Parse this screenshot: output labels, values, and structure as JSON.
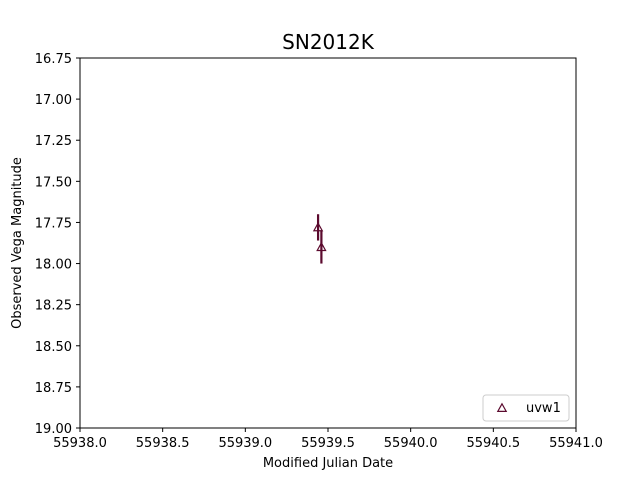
{
  "chart_data": {
    "type": "scatter",
    "title": "SN2012K",
    "xlabel": "Modified Julian Date",
    "ylabel": "Observed Vega Magnitude",
    "xlim": [
      55938.0,
      55941.0
    ],
    "ylim": [
      19.0,
      16.75
    ],
    "y_inverted": true,
    "xticks": [
      "55938.0",
      "55938.5",
      "55939.0",
      "55939.5",
      "55940.0",
      "55940.5",
      "55941.0"
    ],
    "yticks": [
      "16.75",
      "17.00",
      "17.25",
      "17.50",
      "17.75",
      "18.00",
      "18.25",
      "18.50",
      "18.75",
      "19.00"
    ],
    "grid": false,
    "legend_position": "lower-right",
    "series": [
      {
        "name": "uvw1",
        "marker": "triangle-open",
        "color": "#5b0a2e",
        "points": [
          {
            "x": 55939.44,
            "y": 17.78,
            "yerr": 0.08
          },
          {
            "x": 55939.46,
            "y": 17.9,
            "yerr": 0.1
          }
        ]
      }
    ]
  }
}
